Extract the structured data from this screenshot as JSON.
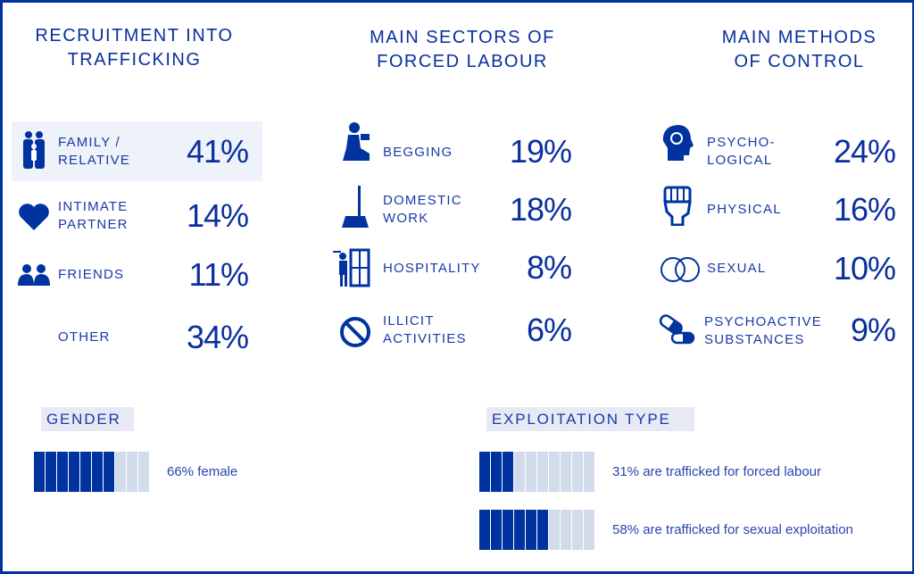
{
  "colors": {
    "primary": "#0033a0",
    "light": "#d1dbea"
  },
  "recruitment": {
    "title": "RECRUITMENT INTO TRAFFICKING",
    "items": [
      {
        "label": "FAMILY / RELATIVE",
        "value": "41%",
        "icon": "family-icon"
      },
      {
        "label": "INTIMATE PARTNER",
        "value": "14%",
        "icon": "heart-icon"
      },
      {
        "label": "FRIENDS",
        "value": "11%",
        "icon": "friends-icon"
      },
      {
        "label": "OTHER",
        "value": "34%",
        "icon": ""
      }
    ]
  },
  "sectors": {
    "title": "MAIN SECTORS OF FORCED LABOUR",
    "items": [
      {
        "label": "BEGGING",
        "value": "19%",
        "icon": "begging-icon"
      },
      {
        "label": "DOMESTIC WORK",
        "value": "18%",
        "icon": "broom-icon"
      },
      {
        "label": "HOSPITALITY",
        "value": "8%",
        "icon": "waiter-icon"
      },
      {
        "label": "ILLICIT ACTIVITIES",
        "value": "6%",
        "icon": "prohibited-icon"
      }
    ]
  },
  "methods": {
    "title": "MAIN METHODS OF CONTROL",
    "items": [
      {
        "label": "PSYCHO- LOGICAL",
        "value": "24%",
        "icon": "head-icon"
      },
      {
        "label": "PHYSICAL",
        "value": "16%",
        "icon": "fist-icon"
      },
      {
        "label": "SEXUAL",
        "value": "10%",
        "icon": "rings-icon"
      },
      {
        "label": "PSYCHOACTIVE SUBSTANCES",
        "value": "9%",
        "icon": "pill-icon"
      }
    ]
  },
  "gender": {
    "title": "GENDER",
    "text": "66% female",
    "filled": 7,
    "total": 10
  },
  "exploitation": {
    "title": "EXPLOITATION TYPE",
    "items": [
      {
        "text": "31% are trafficked for forced labour",
        "filled": 3,
        "total": 10
      },
      {
        "text": "58% are trafficked for sexual exploitation",
        "filled": 6,
        "total": 10
      }
    ]
  }
}
